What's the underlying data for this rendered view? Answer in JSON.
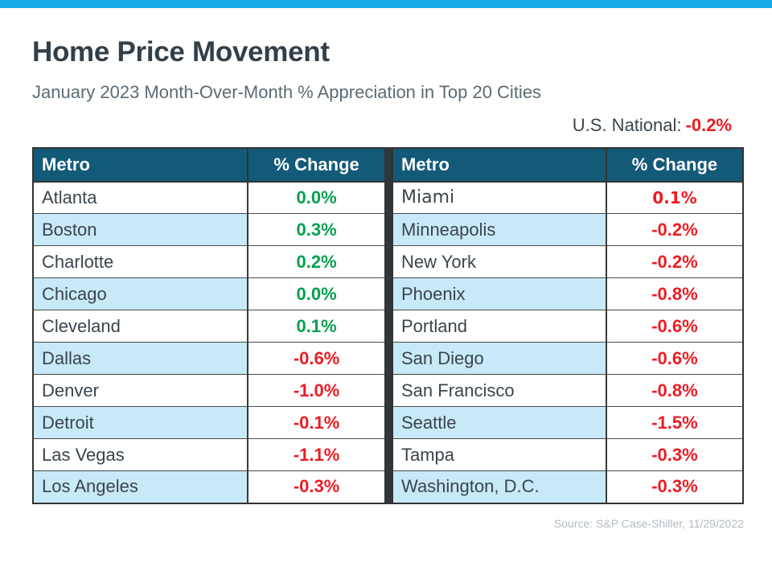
{
  "header": {
    "title": "Home Price Movement",
    "subtitle": "January 2023 Month-Over-Month % Appreciation in Top 20 Cities"
  },
  "national": {
    "label": "U.S. National:",
    "value": "-0.2%"
  },
  "table": {
    "headers": {
      "metro": "Metro",
      "change": "% Change"
    },
    "left_rows": [
      {
        "city": "Atlanta",
        "value": "0.0%",
        "color": "green"
      },
      {
        "city": "Boston",
        "value": "0.3%",
        "color": "green"
      },
      {
        "city": "Charlotte",
        "value": "0.2%",
        "color": "green"
      },
      {
        "city": "Chicago",
        "value": "0.0%",
        "color": "green"
      },
      {
        "city": "Cleveland",
        "value": "0.1%",
        "color": "green"
      },
      {
        "city": "Dallas",
        "value": "-0.6%",
        "color": "red"
      },
      {
        "city": "Denver",
        "value": "-1.0%",
        "color": "red"
      },
      {
        "city": "Detroit",
        "value": "-0.1%",
        "color": "red"
      },
      {
        "city": "Las Vegas",
        "value": "-1.1%",
        "color": "red"
      },
      {
        "city": "Los Angeles",
        "value": "-0.3%",
        "color": "red"
      }
    ],
    "right_rows": [
      {
        "city": "Miami",
        "value": "0.1%",
        "color": "red",
        "alt_font": true
      },
      {
        "city": "Minneapolis",
        "value": "-0.2%",
        "color": "red"
      },
      {
        "city": "New York",
        "value": "-0.2%",
        "color": "red"
      },
      {
        "city": "Phoenix",
        "value": "-0.8%",
        "color": "red"
      },
      {
        "city": "Portland",
        "value": "-0.6%",
        "color": "red"
      },
      {
        "city": "San Diego",
        "value": "-0.6%",
        "color": "red"
      },
      {
        "city": "San Francisco",
        "value": "-0.8%",
        "color": "red"
      },
      {
        "city": "Seattle",
        "value": "-1.5%",
        "color": "red"
      },
      {
        "city": "Tampa",
        "value": "-0.3%",
        "color": "red"
      },
      {
        "city": "Washington, D.C.",
        "value": "-0.3%",
        "color": "red"
      }
    ]
  },
  "footer": {
    "source": "Source: S&P Case-Shiller, 11/29/2022"
  },
  "colors": {
    "accent_bar": "#17AAEA",
    "header_bg": "#135A78",
    "row_alt_bg": "#C8E9F8",
    "positive": "#00A14F",
    "negative": "#ED1C24",
    "title_text": "#333F48",
    "subtitle_text": "#5B6B75",
    "source_text": "#B2BAC2"
  },
  "chart_data": {
    "type": "table",
    "title": "Home Price Movement",
    "subtitle": "January 2023 Month-Over-Month % Appreciation in Top 20 Cities",
    "us_national_pct_change": -0.2,
    "columns": [
      "Metro",
      "% Change"
    ],
    "rows": [
      [
        "Atlanta",
        0.0
      ],
      [
        "Boston",
        0.3
      ],
      [
        "Charlotte",
        0.2
      ],
      [
        "Chicago",
        0.0
      ],
      [
        "Cleveland",
        0.1
      ],
      [
        "Dallas",
        -0.6
      ],
      [
        "Denver",
        -1.0
      ],
      [
        "Detroit",
        -0.1
      ],
      [
        "Las Vegas",
        -1.1
      ],
      [
        "Los Angeles",
        -0.3
      ],
      [
        "Miami",
        0.1
      ],
      [
        "Minneapolis",
        -0.2
      ],
      [
        "New York",
        -0.2
      ],
      [
        "Phoenix",
        -0.8
      ],
      [
        "Portland",
        -0.6
      ],
      [
        "San Diego",
        -0.6
      ],
      [
        "San Francisco",
        -0.8
      ],
      [
        "Seattle",
        -1.5
      ],
      [
        "Tampa",
        -0.3
      ],
      [
        "Washington, D.C.",
        -0.3
      ]
    ],
    "source": "Source: S&P Case-Shiller, 11/29/2022"
  }
}
